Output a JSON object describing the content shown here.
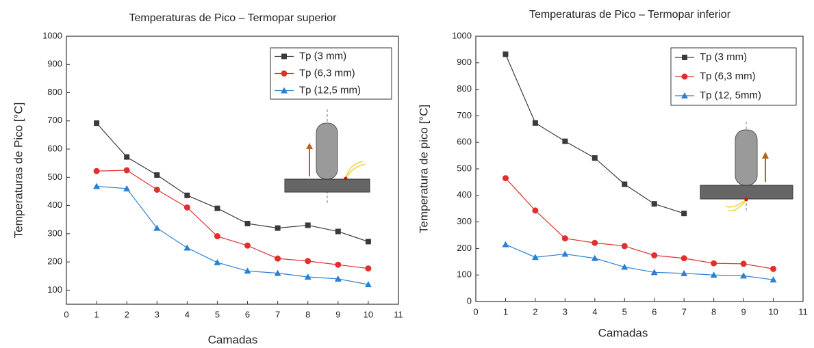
{
  "chart_data": [
    {
      "type": "line",
      "title": "Temperaturas de Pico – Termopar superior",
      "x_label": "Camadas",
      "y_label": "Temperaturas de Pico [°C]",
      "x": [
        1,
        2,
        3,
        4,
        5,
        6,
        7,
        8,
        9,
        10
      ],
      "xlim": [
        0,
        11
      ],
      "xticks": [
        0,
        1,
        2,
        3,
        4,
        5,
        6,
        7,
        8,
        9,
        10,
        11
      ],
      "ylim": [
        50,
        1000
      ],
      "yticks": [
        100,
        200,
        300,
        400,
        500,
        600,
        700,
        800,
        900,
        1000
      ],
      "grid": false,
      "legend": "upper-right",
      "series": [
        {
          "name": "Tp (3 mm)",
          "color": "#3a3a3a",
          "marker": "square",
          "values": [
            692,
            572,
            508,
            436,
            390,
            336,
            320,
            330,
            308,
            272
          ]
        },
        {
          "name": "Tp (6,3 mm)",
          "color": "#e0302e",
          "marker": "circle",
          "values": [
            522,
            525,
            456,
            393,
            291,
            258,
            212,
            203,
            190,
            177
          ]
        },
        {
          "name": "Tp (12,5 mm)",
          "color": "#2b7fd4",
          "marker": "triangle",
          "values": [
            468,
            460,
            320,
            250,
            198,
            168,
            160,
            147,
            140,
            120
          ]
        }
      ]
    },
    {
      "type": "line",
      "title": "Temperaturas de Pico – Termopar inferior",
      "x_label": "Camadas",
      "y_label": "Temperatura de pico [°C]",
      "x": [
        1,
        2,
        3,
        4,
        5,
        6,
        7,
        8,
        9,
        10
      ],
      "xlim": [
        0,
        11
      ],
      "xticks": [
        0,
        1,
        2,
        3,
        4,
        5,
        6,
        7,
        8,
        9,
        10,
        11
      ],
      "ylim": [
        0,
        1000
      ],
      "yticks": [
        0,
        100,
        200,
        300,
        400,
        500,
        600,
        700,
        800,
        900,
        1000
      ],
      "grid": false,
      "legend": "upper-right",
      "series": [
        {
          "name": "Tp (3 mm)",
          "color": "#3a3a3a",
          "marker": "square",
          "values": [
            932,
            673,
            604,
            541,
            442,
            368,
            332,
            null,
            null,
            null
          ]
        },
        {
          "name": "Tp (6,3 mm)",
          "color": "#e0302e",
          "marker": "circle",
          "values": [
            465,
            343,
            238,
            221,
            209,
            174,
            163,
            144,
            142,
            123
          ]
        },
        {
          "name": "Tp (12, 5mm)",
          "color": "#2b7fd4",
          "marker": "triangle",
          "values": [
            215,
            167,
            179,
            163,
            130,
            110,
            106,
            100,
            97,
            82
          ]
        }
      ]
    }
  ]
}
